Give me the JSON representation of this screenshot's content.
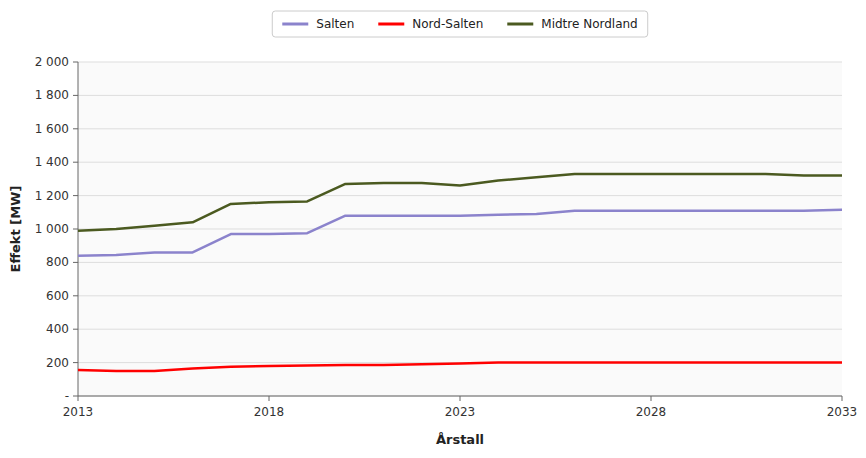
{
  "chart_data": {
    "type": "line",
    "x_label": "Årstall",
    "y_label": "Effekt [MW]",
    "x": [
      2013,
      2014,
      2015,
      2016,
      2017,
      2018,
      2019,
      2020,
      2021,
      2022,
      2023,
      2024,
      2025,
      2026,
      2027,
      2028,
      2029,
      2030,
      2031,
      2032,
      2033
    ],
    "series": [
      {
        "name": "Salten",
        "color": "#8B83CC",
        "values": [
          840,
          845,
          860,
          860,
          970,
          970,
          975,
          1080,
          1080,
          1080,
          1080,
          1085,
          1090,
          1110,
          1110,
          1110,
          1110,
          1110,
          1110,
          1110,
          1115
        ]
      },
      {
        "name": "Nord-Salten",
        "color": "#FF0000",
        "values": [
          155,
          150,
          150,
          165,
          175,
          180,
          183,
          185,
          186,
          190,
          195,
          200,
          200,
          200,
          200,
          200,
          200,
          200,
          200,
          200,
          200
        ]
      },
      {
        "name": "Midtre Nordland",
        "color": "#4B5A20",
        "values": [
          990,
          1000,
          1020,
          1040,
          1150,
          1160,
          1165,
          1270,
          1275,
          1275,
          1260,
          1290,
          1310,
          1330,
          1330,
          1330,
          1330,
          1330,
          1330,
          1320,
          1320
        ]
      }
    ],
    "xlim": [
      2013,
      2033
    ],
    "xticks": [
      2013,
      2018,
      2023,
      2028,
      2033
    ],
    "ylim": [
      0,
      2000
    ],
    "yticks": [
      {
        "value": 0,
        "label": "-"
      },
      200,
      400,
      600,
      800,
      {
        "value": 1000,
        "label": "1 000"
      },
      {
        "value": 1200,
        "label": "1 200"
      },
      {
        "value": 1400,
        "label": "1 400"
      },
      {
        "value": 1600,
        "label": "1 600"
      },
      {
        "value": 1800,
        "label": "1 800"
      },
      {
        "value": 2000,
        "label": "2 000"
      }
    ],
    "grid": true,
    "legend": "top"
  }
}
